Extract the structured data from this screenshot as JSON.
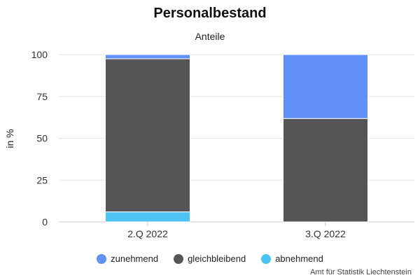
{
  "chart_data": {
    "type": "bar",
    "stacked": true,
    "title": "Personalbestand",
    "subtitle": "Anteile",
    "xlabel": "",
    "ylabel": "in %",
    "ylim": [
      0,
      100
    ],
    "yticks": [
      0,
      25,
      50,
      75,
      100
    ],
    "grid": true,
    "legend_position": "bottom",
    "categories": [
      "2.Q 2022",
      "3.Q 2022"
    ],
    "series": [
      {
        "name": "abnehmend",
        "color": "#4cc3f2",
        "values": [
          6,
          0
        ]
      },
      {
        "name": "gleichbleibend",
        "color": "#555557",
        "values": [
          91.5,
          61.8
        ]
      },
      {
        "name": "zunehmend",
        "color": "#6090f8",
        "values": [
          2.5,
          38.2
        ]
      }
    ],
    "legend_order": [
      "zunehmend",
      "gleichbleibend",
      "abnehmend"
    ]
  },
  "source": "Amt für Statistik Liechtenstein"
}
